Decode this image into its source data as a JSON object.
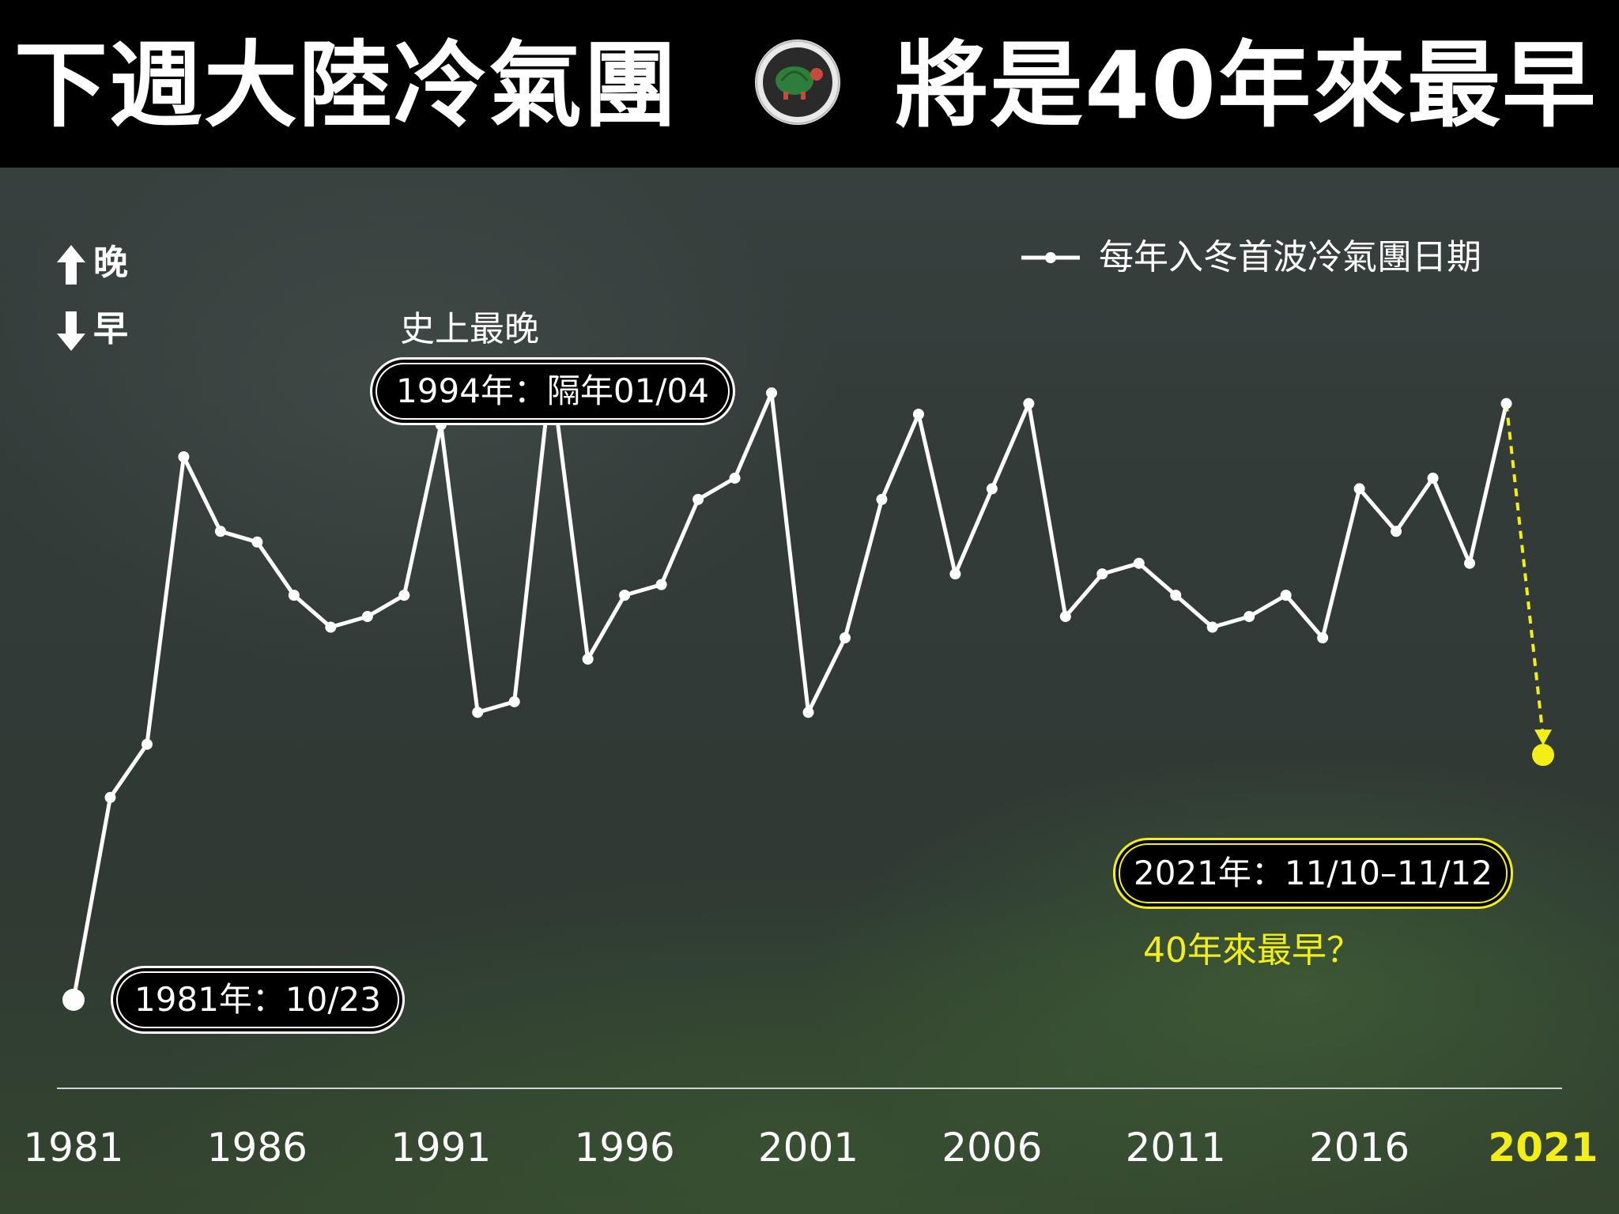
{
  "header": {
    "title_left": "下週大陸冷氣團",
    "title_right": "將是40年來最早",
    "logo_icon": "turtle-logo-icon"
  },
  "indicators": {
    "later_label": "晚",
    "earlier_label": "早"
  },
  "chart_data": {
    "type": "line",
    "title": "",
    "legend": {
      "label": "每年入冬首波冷氣團日期",
      "placement": "top-right"
    },
    "x_ticks": [
      "1981",
      "1986",
      "1991",
      "1996",
      "2001",
      "2006",
      "2011",
      "2016",
      "2021"
    ],
    "highlight_tick": "2021",
    "xlim": [
      1981,
      2021
    ],
    "ylim": [
      0,
      100
    ],
    "y_axis_note": "relative date: higher = later, lower = earlier",
    "series": [
      {
        "values": [
          {
            "x": 1981,
            "y": 6
          },
          {
            "x": 1982,
            "y": 25
          },
          {
            "x": 1983,
            "y": 30
          },
          {
            "x": 1984,
            "y": 57
          },
          {
            "x": 1985,
            "y": 50
          },
          {
            "x": 1986,
            "y": 49
          },
          {
            "x": 1987,
            "y": 44
          },
          {
            "x": 1988,
            "y": 41
          },
          {
            "x": 1989,
            "y": 42
          },
          {
            "x": 1990,
            "y": 44
          },
          {
            "x": 1991,
            "y": 60
          },
          {
            "x": 1992,
            "y": 33
          },
          {
            "x": 1993,
            "y": 34
          },
          {
            "x": 1994,
            "y": 65
          },
          {
            "x": 1995,
            "y": 38
          },
          {
            "x": 1996,
            "y": 44
          },
          {
            "x": 1997,
            "y": 45
          },
          {
            "x": 1998,
            "y": 53
          },
          {
            "x": 1999,
            "y": 55
          },
          {
            "x": 2000,
            "y": 63
          },
          {
            "x": 2001,
            "y": 33
          },
          {
            "x": 2002,
            "y": 40
          },
          {
            "x": 2003,
            "y": 53
          },
          {
            "x": 2004,
            "y": 61
          },
          {
            "x": 2005,
            "y": 46
          },
          {
            "x": 2006,
            "y": 54
          },
          {
            "x": 2007,
            "y": 62
          },
          {
            "x": 2008,
            "y": 42
          },
          {
            "x": 2009,
            "y": 46
          },
          {
            "x": 2010,
            "y": 47
          },
          {
            "x": 2011,
            "y": 44
          },
          {
            "x": 2012,
            "y": 41
          },
          {
            "x": 2013,
            "y": 42
          },
          {
            "x": 2014,
            "y": 44
          },
          {
            "x": 2015,
            "y": 40
          },
          {
            "x": 2016,
            "y": 54
          },
          {
            "x": 2017,
            "y": 50
          },
          {
            "x": 2018,
            "y": 55
          },
          {
            "x": 2019,
            "y": 47
          },
          {
            "x": 2020,
            "y": 62
          }
        ]
      }
    ],
    "projection": {
      "from": {
        "x": 2020,
        "y": 62
      },
      "to": {
        "x": 2021,
        "y": 29
      },
      "color": "#f4ee17"
    },
    "annotations": [
      {
        "year": 1981,
        "label": "1981年：10/23"
      },
      {
        "year": 1994,
        "label": "1994年：隔年01/04",
        "note": "史上最晚"
      },
      {
        "year": 2021,
        "label": "2021年：11/10–11/12",
        "note": "40年來最早？"
      }
    ],
    "colors": {
      "line": "#ffffff",
      "highlight": "#f4ee17",
      "title_bar": "#000000"
    }
  }
}
